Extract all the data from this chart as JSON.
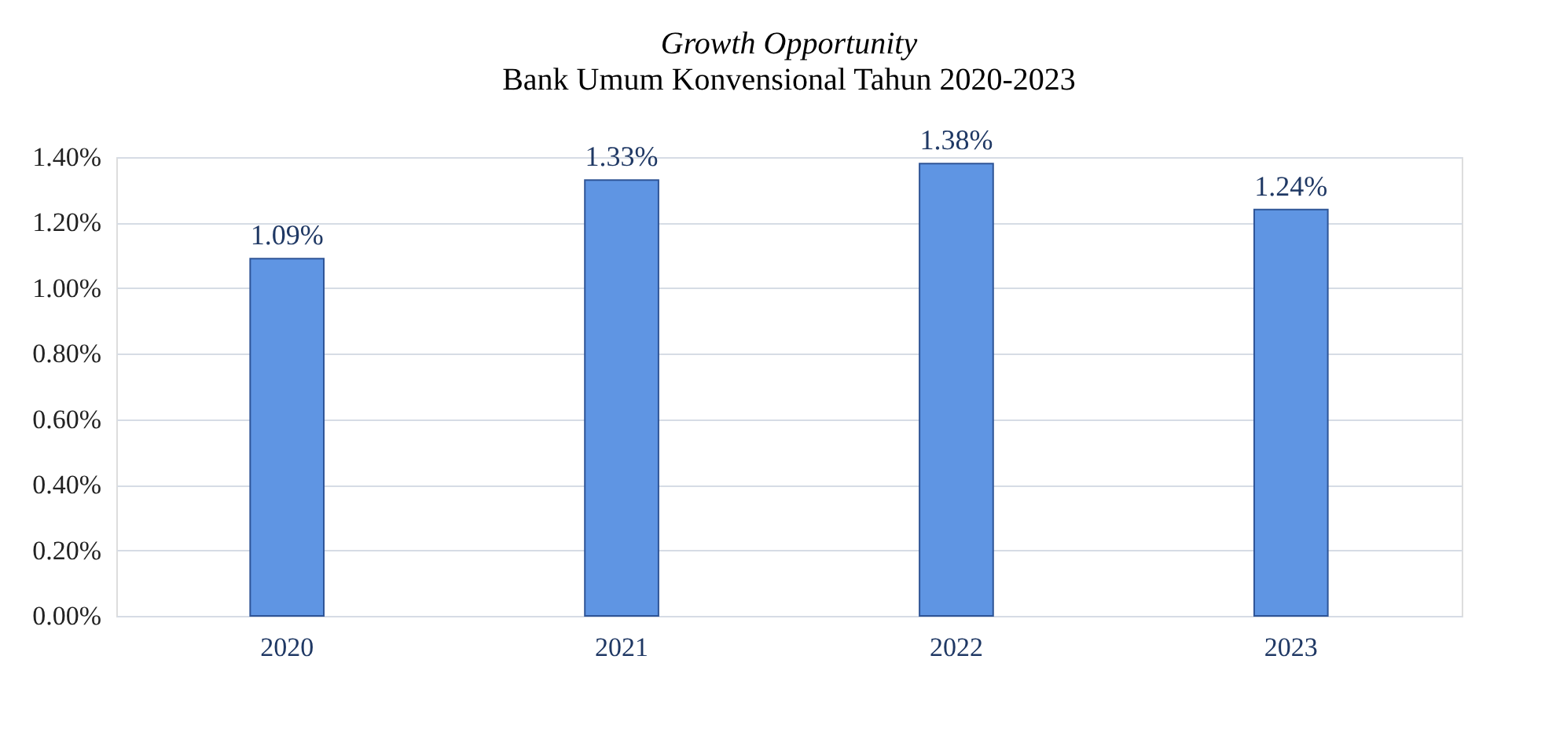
{
  "chart_data": {
    "type": "bar",
    "title": "Growth Opportunity",
    "subtitle": "Bank Umum Konvensional Tahun 2020-2023",
    "categories": [
      "2020",
      "2021",
      "2022",
      "2023"
    ],
    "values": [
      1.09,
      1.33,
      1.38,
      1.24
    ],
    "color": "#5f95e3",
    "value_labels": [
      "1.09%",
      "1.33%",
      "1.38%",
      "1.24%"
    ],
    "ylim": [
      0,
      1.4
    ],
    "yticks": [
      {
        "value": 0,
        "label": "0.00%"
      },
      {
        "value": 0.2,
        "label": "0.20%"
      },
      {
        "value": 0.4,
        "label": "0.40%"
      },
      {
        "value": 0.6,
        "label": "0.60%"
      },
      {
        "value": 0.8,
        "label": "0.80%"
      },
      {
        "value": 1.0,
        "label": "1.00%"
      },
      {
        "value": 1.2,
        "label": "1.20%"
      },
      {
        "value": 1.4,
        "label": "1.40%"
      }
    ],
    "grid": "y"
  }
}
